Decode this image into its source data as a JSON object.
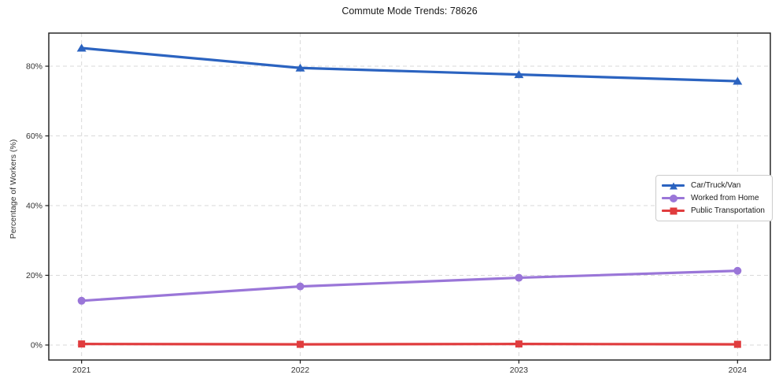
{
  "chart_data": {
    "type": "line",
    "title": "Commute Mode Trends: 78626",
    "xlabel": "",
    "ylabel": "Percentage of Workers (%)",
    "x": [
      2021,
      2022,
      2023,
      2024
    ],
    "x_tick_labels": [
      "2021",
      "2022",
      "2023",
      "2024"
    ],
    "y_ticks": [
      0,
      20,
      40,
      60,
      80
    ],
    "y_tick_labels": [
      "0%",
      "20%",
      "40%",
      "60%",
      "80%"
    ],
    "xlim": [
      2020.85,
      2024.15
    ],
    "ylim": [
      -4.3,
      89.5
    ],
    "grid": true,
    "grid_style": "dashed",
    "legend_position": "center right",
    "series": [
      {
        "name": "Car/Truck/Van",
        "color": "#2b63c0",
        "marker": "triangle",
        "values": [
          85.2,
          79.5,
          77.6,
          75.7
        ]
      },
      {
        "name": "Worked from Home",
        "color": "#9a76d8",
        "marker": "circle",
        "values": [
          12.7,
          16.8,
          19.3,
          21.3
        ]
      },
      {
        "name": "Public Transportation",
        "color": "#e03c3e",
        "marker": "square",
        "values": [
          0.3,
          0.2,
          0.3,
          0.2
        ]
      }
    ],
    "colors": {
      "grid": "#d9d9d9",
      "axis": "#1a1a1a",
      "tick_labels": "#333333",
      "background": "#ffffff"
    }
  }
}
